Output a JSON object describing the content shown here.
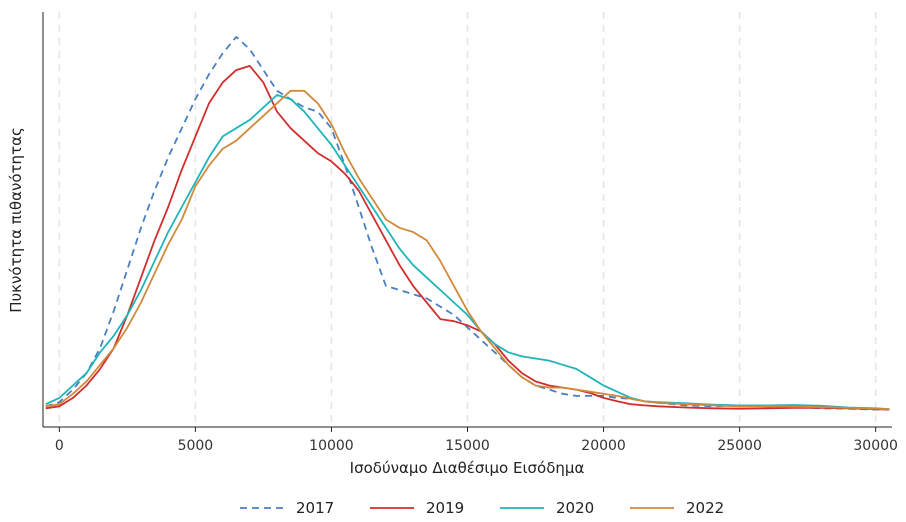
{
  "chart_data": {
    "type": "line",
    "title": "",
    "xlabel": "Ισοδύναμο Διαθέσιμο Εισόδημα",
    "ylabel": "Πυκνότητα πιθανότητας",
    "xlim": [
      -600,
      30600
    ],
    "ylim": [
      0,
      1.0
    ],
    "x_ticks": [
      0,
      5000,
      10000,
      15000,
      20000,
      25000,
      30000
    ],
    "x_tick_labels": [
      "0",
      "5000",
      "10000",
      "15000",
      "20000",
      "25000",
      "30000"
    ],
    "grid": "vertical-dashed",
    "legend_position": "bottom-center",
    "series": [
      {
        "name": "2017",
        "color": "#4a7fc1",
        "dash": "dashed",
        "points": [
          [
            -500,
            0.05
          ],
          [
            0,
            0.06
          ],
          [
            500,
            0.09
          ],
          [
            1000,
            0.13
          ],
          [
            1500,
            0.19
          ],
          [
            2000,
            0.28
          ],
          [
            2500,
            0.38
          ],
          [
            3000,
            0.48
          ],
          [
            3500,
            0.57
          ],
          [
            4000,
            0.65
          ],
          [
            4500,
            0.72
          ],
          [
            5000,
            0.79
          ],
          [
            5500,
            0.85
          ],
          [
            6000,
            0.9
          ],
          [
            6500,
            0.94
          ],
          [
            7000,
            0.91
          ],
          [
            7500,
            0.86
          ],
          [
            8000,
            0.81
          ],
          [
            8500,
            0.79
          ],
          [
            9000,
            0.77
          ],
          [
            9500,
            0.76
          ],
          [
            10000,
            0.72
          ],
          [
            10500,
            0.63
          ],
          [
            11000,
            0.53
          ],
          [
            11500,
            0.43
          ],
          [
            12000,
            0.34
          ],
          [
            12500,
            0.33
          ],
          [
            13000,
            0.32
          ],
          [
            13500,
            0.31
          ],
          [
            14000,
            0.29
          ],
          [
            14500,
            0.27
          ],
          [
            15000,
            0.24
          ],
          [
            15500,
            0.21
          ],
          [
            16000,
            0.18
          ],
          [
            16500,
            0.15
          ],
          [
            17000,
            0.12
          ],
          [
            17500,
            0.1
          ],
          [
            18000,
            0.09
          ],
          [
            18500,
            0.08
          ],
          [
            19000,
            0.075
          ],
          [
            19500,
            0.075
          ],
          [
            20000,
            0.075
          ],
          [
            20500,
            0.07
          ],
          [
            21000,
            0.068
          ],
          [
            21500,
            0.062
          ],
          [
            22000,
            0.058
          ],
          [
            23000,
            0.052
          ],
          [
            24000,
            0.05
          ],
          [
            25000,
            0.052
          ],
          [
            26000,
            0.05
          ],
          [
            27000,
            0.048
          ],
          [
            28000,
            0.045
          ],
          [
            29000,
            0.044
          ],
          [
            30000,
            0.042
          ],
          [
            30500,
            0.042
          ]
        ]
      },
      {
        "name": "2019",
        "color": "#d12e2e",
        "dash": "solid",
        "points": [
          [
            -500,
            0.045
          ],
          [
            0,
            0.05
          ],
          [
            500,
            0.07
          ],
          [
            1000,
            0.1
          ],
          [
            1500,
            0.14
          ],
          [
            2000,
            0.19
          ],
          [
            2500,
            0.27
          ],
          [
            3000,
            0.36
          ],
          [
            3500,
            0.45
          ],
          [
            4000,
            0.53
          ],
          [
            4500,
            0.62
          ],
          [
            5000,
            0.7
          ],
          [
            5500,
            0.78
          ],
          [
            6000,
            0.83
          ],
          [
            6500,
            0.86
          ],
          [
            7000,
            0.87
          ],
          [
            7500,
            0.83
          ],
          [
            8000,
            0.76
          ],
          [
            8500,
            0.72
          ],
          [
            9000,
            0.69
          ],
          [
            9500,
            0.66
          ],
          [
            10000,
            0.64
          ],
          [
            10500,
            0.61
          ],
          [
            11000,
            0.57
          ],
          [
            11500,
            0.51
          ],
          [
            12000,
            0.45
          ],
          [
            12500,
            0.39
          ],
          [
            13000,
            0.34
          ],
          [
            13500,
            0.3
          ],
          [
            14000,
            0.26
          ],
          [
            14500,
            0.255
          ],
          [
            15000,
            0.245
          ],
          [
            15500,
            0.23
          ],
          [
            16000,
            0.2
          ],
          [
            16500,
            0.16
          ],
          [
            17000,
            0.13
          ],
          [
            17500,
            0.11
          ],
          [
            18000,
            0.1
          ],
          [
            18500,
            0.095
          ],
          [
            19000,
            0.09
          ],
          [
            19500,
            0.082
          ],
          [
            20000,
            0.07
          ],
          [
            20500,
            0.062
          ],
          [
            21000,
            0.055
          ],
          [
            21500,
            0.052
          ],
          [
            22000,
            0.05
          ],
          [
            23000,
            0.047
          ],
          [
            24000,
            0.045
          ],
          [
            25000,
            0.044
          ],
          [
            26000,
            0.045
          ],
          [
            27000,
            0.046
          ],
          [
            28000,
            0.046
          ],
          [
            29000,
            0.045
          ],
          [
            30000,
            0.043
          ],
          [
            30500,
            0.042
          ]
        ]
      },
      {
        "name": "2020",
        "color": "#1fb5b8",
        "dash": "solid",
        "points": [
          [
            -500,
            0.055
          ],
          [
            0,
            0.07
          ],
          [
            500,
            0.1
          ],
          [
            1000,
            0.13
          ],
          [
            1500,
            0.18
          ],
          [
            2000,
            0.22
          ],
          [
            2500,
            0.27
          ],
          [
            3000,
            0.33
          ],
          [
            3500,
            0.4
          ],
          [
            4000,
            0.47
          ],
          [
            4500,
            0.53
          ],
          [
            5000,
            0.59
          ],
          [
            5500,
            0.65
          ],
          [
            6000,
            0.7
          ],
          [
            6500,
            0.72
          ],
          [
            7000,
            0.74
          ],
          [
            7500,
            0.77
          ],
          [
            8000,
            0.8
          ],
          [
            8500,
            0.79
          ],
          [
            9000,
            0.76
          ],
          [
            9500,
            0.72
          ],
          [
            10000,
            0.68
          ],
          [
            10500,
            0.63
          ],
          [
            11000,
            0.58
          ],
          [
            11500,
            0.53
          ],
          [
            12000,
            0.48
          ],
          [
            12500,
            0.43
          ],
          [
            13000,
            0.39
          ],
          [
            13500,
            0.36
          ],
          [
            14000,
            0.33
          ],
          [
            14500,
            0.3
          ],
          [
            15000,
            0.27
          ],
          [
            15500,
            0.23
          ],
          [
            16000,
            0.2
          ],
          [
            16500,
            0.18
          ],
          [
            17000,
            0.17
          ],
          [
            17500,
            0.165
          ],
          [
            18000,
            0.16
          ],
          [
            18500,
            0.15
          ],
          [
            19000,
            0.14
          ],
          [
            19500,
            0.12
          ],
          [
            20000,
            0.1
          ],
          [
            20500,
            0.085
          ],
          [
            21000,
            0.07
          ],
          [
            21500,
            0.062
          ],
          [
            22000,
            0.06
          ],
          [
            23000,
            0.057
          ],
          [
            24000,
            0.054
          ],
          [
            25000,
            0.052
          ],
          [
            26000,
            0.052
          ],
          [
            27000,
            0.053
          ],
          [
            28000,
            0.051
          ],
          [
            29000,
            0.047
          ],
          [
            30000,
            0.045
          ],
          [
            30500,
            0.043
          ]
        ]
      },
      {
        "name": "2022",
        "color": "#d18a3a",
        "dash": "solid",
        "points": [
          [
            -500,
            0.05
          ],
          [
            0,
            0.055
          ],
          [
            500,
            0.08
          ],
          [
            1000,
            0.11
          ],
          [
            1500,
            0.15
          ],
          [
            2000,
            0.19
          ],
          [
            2500,
            0.24
          ],
          [
            3000,
            0.3
          ],
          [
            3500,
            0.37
          ],
          [
            4000,
            0.44
          ],
          [
            4500,
            0.5
          ],
          [
            5000,
            0.58
          ],
          [
            5500,
            0.63
          ],
          [
            6000,
            0.67
          ],
          [
            6500,
            0.69
          ],
          [
            7000,
            0.72
          ],
          [
            7500,
            0.75
          ],
          [
            8000,
            0.78
          ],
          [
            8500,
            0.81
          ],
          [
            9000,
            0.81
          ],
          [
            9500,
            0.78
          ],
          [
            10000,
            0.73
          ],
          [
            10500,
            0.66
          ],
          [
            11000,
            0.6
          ],
          [
            11500,
            0.55
          ],
          [
            12000,
            0.5
          ],
          [
            12500,
            0.48
          ],
          [
            13000,
            0.47
          ],
          [
            13500,
            0.45
          ],
          [
            14000,
            0.4
          ],
          [
            14500,
            0.34
          ],
          [
            15000,
            0.28
          ],
          [
            15500,
            0.23
          ],
          [
            16000,
            0.19
          ],
          [
            16500,
            0.15
          ],
          [
            17000,
            0.12
          ],
          [
            17500,
            0.1
          ],
          [
            18000,
            0.095
          ],
          [
            18500,
            0.095
          ],
          [
            19000,
            0.09
          ],
          [
            19500,
            0.085
          ],
          [
            20000,
            0.08
          ],
          [
            20500,
            0.075
          ],
          [
            21000,
            0.068
          ],
          [
            21500,
            0.062
          ],
          [
            22000,
            0.058
          ],
          [
            23000,
            0.055
          ],
          [
            24000,
            0.052
          ],
          [
            25000,
            0.05
          ],
          [
            26000,
            0.05
          ],
          [
            27000,
            0.049
          ],
          [
            28000,
            0.048
          ],
          [
            29000,
            0.046
          ],
          [
            30000,
            0.044
          ],
          [
            30500,
            0.043
          ]
        ]
      }
    ]
  }
}
